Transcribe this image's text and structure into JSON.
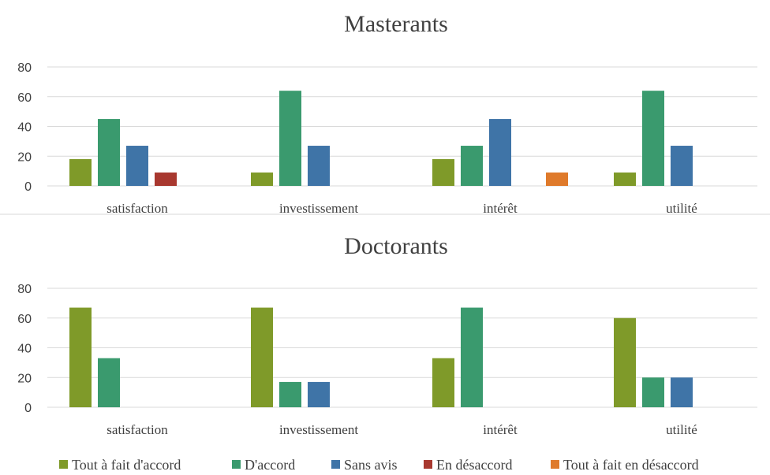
{
  "chart_data": [
    {
      "type": "bar",
      "title": "Masterants",
      "categories": [
        "satisfaction",
        "investissement",
        "intérêt",
        "utilité"
      ],
      "ylim": [
        0,
        80
      ],
      "yticks": [
        0,
        20,
        40,
        60,
        80
      ],
      "grid": true,
      "series": [
        {
          "name": "Tout à fait d'accord",
          "color": "#7f9a29",
          "values": [
            18,
            9,
            18,
            9
          ]
        },
        {
          "name": "D'accord",
          "color": "#3a9a6e",
          "values": [
            45,
            64,
            27,
            64
          ]
        },
        {
          "name": "Sans avis",
          "color": "#3f74a7",
          "values": [
            27,
            27,
            45,
            27
          ]
        },
        {
          "name": "En désaccord",
          "color": "#a8382f",
          "values": [
            9,
            0,
            0,
            0
          ]
        },
        {
          "name": "Tout à fait en désaccord",
          "color": "#df7a2b",
          "values": [
            0,
            0,
            9,
            0
          ]
        }
      ]
    },
    {
      "type": "bar",
      "title": "Doctorants",
      "categories": [
        "satisfaction",
        "investissement",
        "intérêt",
        "utilité"
      ],
      "ylim": [
        0,
        80
      ],
      "yticks": [
        0,
        20,
        40,
        60,
        80
      ],
      "grid": true,
      "series": [
        {
          "name": "Tout à fait d'accord",
          "color": "#7f9a29",
          "values": [
            67,
            67,
            33,
            60
          ]
        },
        {
          "name": "D'accord",
          "color": "#3a9a6e",
          "values": [
            33,
            17,
            67,
            20
          ]
        },
        {
          "name": "Sans avis",
          "color": "#3f74a7",
          "values": [
            0,
            17,
            0,
            20
          ]
        },
        {
          "name": "En désaccord",
          "color": "#a8382f",
          "values": [
            0,
            0,
            0,
            0
          ]
        },
        {
          "name": "Tout à fait en désaccord",
          "color": "#df7a2b",
          "values": [
            0,
            0,
            0,
            0
          ]
        }
      ]
    }
  ],
  "legend": {
    "position": "bottom",
    "items": [
      {
        "label": "Tout à fait d'accord",
        "color": "#7f9a29"
      },
      {
        "label": "D'accord",
        "color": "#3a9a6e"
      },
      {
        "label": "Sans avis",
        "color": "#3f74a7"
      },
      {
        "label": "En désaccord",
        "color": "#a8382f"
      },
      {
        "label": "Tout à fait en désaccord",
        "color": "#df7a2b"
      }
    ]
  }
}
